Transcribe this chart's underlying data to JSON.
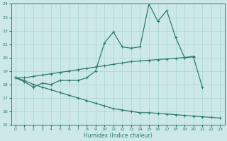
{
  "title": "",
  "xlabel": "Humidex (Indice chaleur)",
  "x": [
    0,
    1,
    2,
    3,
    4,
    5,
    6,
    7,
    8,
    9,
    10,
    11,
    12,
    13,
    14,
    15,
    16,
    17,
    18,
    19,
    20,
    21,
    22,
    23
  ],
  "line1": [
    18.5,
    18.2,
    17.8,
    18.1,
    18.0,
    18.3,
    18.3,
    18.3,
    18.5,
    19.0,
    21.1,
    21.9,
    20.8,
    20.7,
    20.8,
    24.0,
    22.7,
    23.5,
    21.5,
    20.0,
    20.1,
    null,
    null,
    null
  ],
  "line2": [
    18.5,
    18.5,
    18.6,
    18.7,
    18.8,
    18.9,
    19.0,
    19.1,
    19.2,
    19.3,
    19.4,
    19.5,
    19.6,
    19.7,
    19.75,
    19.8,
    19.85,
    19.9,
    19.95,
    20.0,
    20.05,
    17.8,
    null,
    null
  ],
  "line3": [
    18.5,
    18.3,
    18.0,
    17.8,
    17.6,
    17.4,
    17.2,
    17.0,
    16.8,
    16.6,
    16.4,
    16.2,
    16.1,
    16.0,
    15.9,
    15.9,
    15.85,
    15.8,
    15.75,
    15.7,
    15.65,
    15.6,
    15.55,
    15.5
  ],
  "color": "#2d7d6e",
  "bg_color": "#cce8e8",
  "grid_color": "#aad4d4",
  "ylim": [
    15,
    24
  ],
  "yticks": [
    15,
    16,
    17,
    18,
    19,
    20,
    21,
    22,
    23,
    24
  ],
  "xticks": [
    0,
    1,
    2,
    3,
    4,
    5,
    6,
    7,
    8,
    9,
    10,
    11,
    12,
    13,
    14,
    15,
    16,
    17,
    18,
    19,
    20,
    21,
    22,
    23
  ],
  "marker": "+",
  "markersize": 3.5,
  "linewidth": 0.9
}
